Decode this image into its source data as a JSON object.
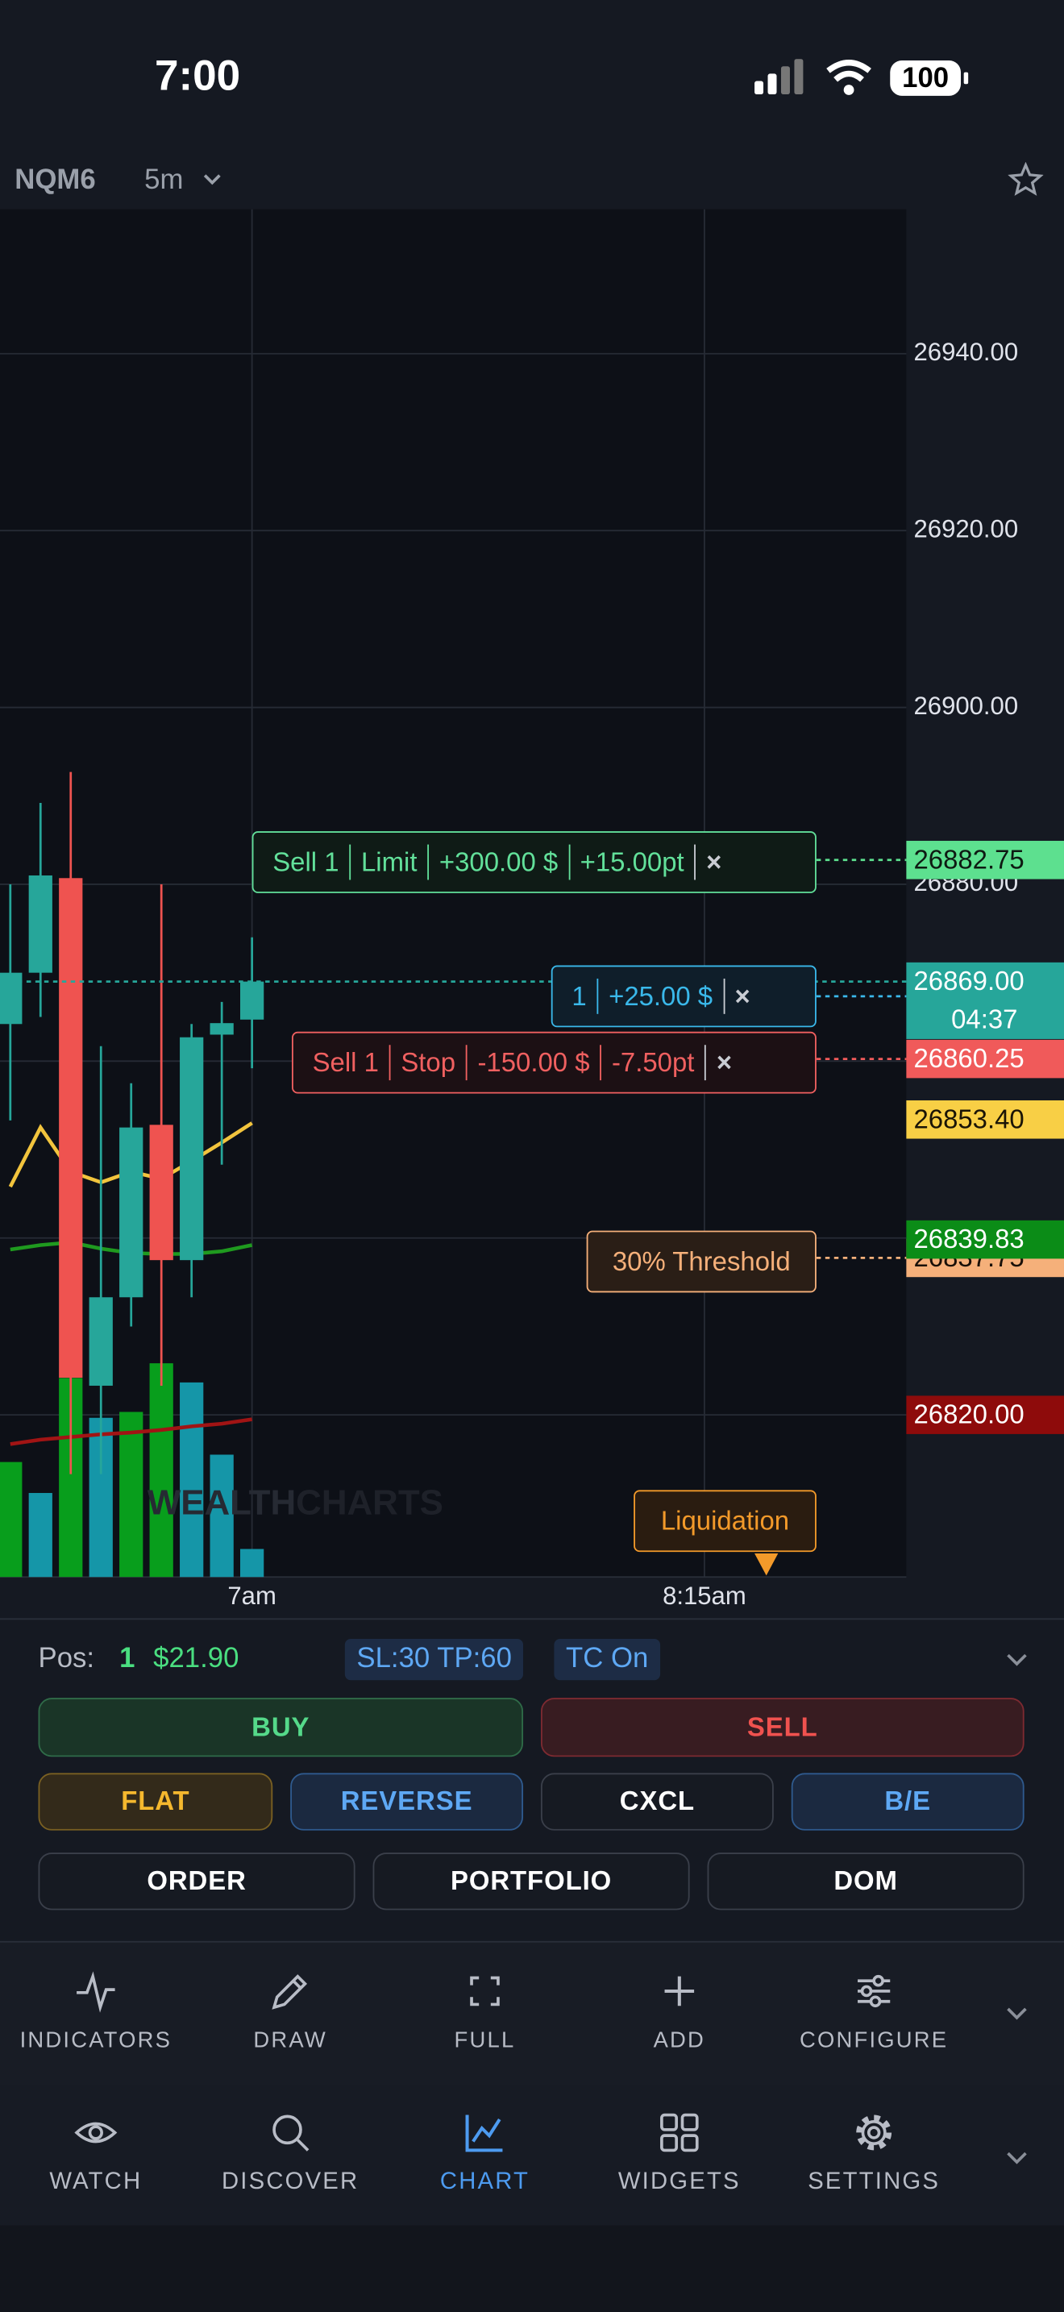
{
  "status": {
    "time": "7:00",
    "battery": "100"
  },
  "header": {
    "symbol": "NQM6",
    "interval": "5m"
  },
  "chart_data": {
    "type": "candlestick",
    "ylim": [
      26801.67,
      26956.33
    ],
    "yticks": [
      {
        "value": 26940,
        "label": "26940.00"
      },
      {
        "value": 26920,
        "label": "26920.00"
      },
      {
        "value": 26900,
        "label": "26900.00"
      },
      {
        "value": 26880,
        "label": "26880.00"
      },
      {
        "value": 26860,
        "label": "26860.00"
      },
      {
        "value": 26840,
        "label": "26840.00"
      },
      {
        "value": 26820,
        "label": "26820.00"
      }
    ],
    "xticks": [
      "7am",
      "8:15am"
    ],
    "grid": true,
    "candles": {
      "open": [
        26864.2,
        26870,
        26880.7,
        26823.3,
        26833.3,
        26852.8,
        26837.5,
        26863,
        26864.7
      ],
      "high": [
        26880,
        26889.2,
        26892.7,
        26861.7,
        26857.5,
        26880,
        26864.2,
        26866.7,
        26874
      ],
      "low": [
        26853.3,
        26865,
        26813.3,
        26813.3,
        26830,
        26823.3,
        26833.3,
        26848.3,
        26859.2
      ],
      "close": [
        26870,
        26881,
        26824.2,
        26833.3,
        26852.5,
        26837.5,
        26862.7,
        26864.3,
        26869
      ],
      "up_color": "#26a69a",
      "down_color": "#ef5350"
    },
    "volume": [
      78,
      57,
      135,
      108,
      112,
      145,
      132,
      83,
      19
    ],
    "volume_colors": [
      "#089e1c",
      "#1596a8",
      "#089e1c",
      "#1596a8",
      "#089e1c",
      "#089e1c",
      "#1596a8",
      "#1596a8",
      "#1596a8"
    ],
    "series": [
      {
        "color": "#f2c43d",
        "values": [
          26845.8,
          26852.5,
          26847.5,
          26846.3,
          26847.5,
          26846.7,
          26848.7,
          26850.8,
          26853
        ]
      },
      {
        "color": "#1f9a1f",
        "values": [
          26838.7,
          26839.2,
          26839.5,
          26838.8,
          26838.3,
          26838.2,
          26838.2,
          26838.5,
          26839.2
        ]
      },
      {
        "color": "#a11414",
        "values": [
          26816.7,
          26817.2,
          26817.5,
          26817.8,
          26818,
          26818.3,
          26818.7,
          26819,
          26819.5
        ]
      }
    ],
    "price_markers": [
      {
        "value": 26882.75,
        "label": "26882.75",
        "color": "#5de08f",
        "text_color": "#0e1a12"
      },
      {
        "value": 26869,
        "label": "26869.00",
        "color": "#26a69a",
        "text_color": "#ffffff",
        "sub": "04:37"
      },
      {
        "value": 26860.25,
        "label": "26860.25",
        "color": "#f05a5a",
        "text_color": "#ffffff"
      },
      {
        "value": 26853.4,
        "label": "26853.40",
        "color": "#f8cf45",
        "text_color": "#1a1406"
      },
      {
        "value": 26837.75,
        "label": "26837.75",
        "color": "#f5b07a",
        "text_color": "#1a1008"
      },
      {
        "value": 26839.83,
        "label": "26839.83",
        "color": "#0b8c17",
        "text_color": "#ffffff"
      },
      {
        "value": 26820,
        "label": "26820.00",
        "color": "#8e0b0b",
        "text_color": "#ffffff"
      }
    ]
  },
  "orders": [
    {
      "parts": [
        "Sell 1",
        "Limit",
        "+300.00 $",
        "+15.00pt"
      ],
      "close": "×"
    },
    {
      "parts": [
        "1",
        "+25.00 $"
      ],
      "close": "×"
    },
    {
      "parts": [
        "Sell 1",
        "Stop",
        "-150.00 $",
        "-7.50pt"
      ],
      "close": "×"
    }
  ],
  "threshold": "30% Threshold",
  "liquidation": "Liquidation",
  "watermark": [
    "WEALTH",
    "CHARTS"
  ],
  "position": {
    "label": "Pos:",
    "qty": "1",
    "pnl": "$21.90",
    "sltp": "SL:30 TP:60",
    "tc": "TC On"
  },
  "buttons": [
    "BUY",
    "SELL",
    "FLAT",
    "REVERSE",
    "CXCL",
    "B/E",
    "ORDER",
    "PORTFOLIO",
    "DOM"
  ],
  "tools": [
    "INDICATORS",
    "DRAW",
    "FULL",
    "ADD",
    "CONFIGURE"
  ],
  "nav": [
    "WATCH",
    "DISCOVER",
    "CHART",
    "WIDGETS",
    "SETTINGS"
  ]
}
